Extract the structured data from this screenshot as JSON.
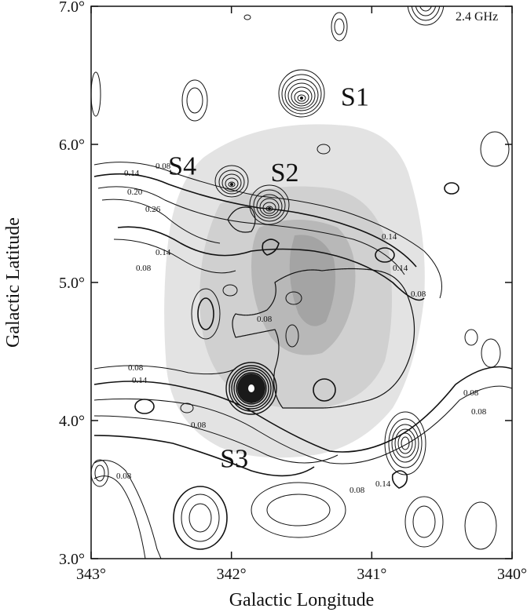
{
  "chart_data": {
    "type": "contour",
    "frequency_label": "2.4 GHz",
    "xlabel": "Galactic Longitude",
    "ylabel": "Galactic Latitude",
    "xlim": [
      343,
      340
    ],
    "ylim": [
      3.0,
      7.0
    ],
    "x_ticks": [
      343,
      342,
      341,
      340
    ],
    "x_tick_labels": [
      "343°",
      "342°",
      "341°",
      "340°"
    ],
    "y_ticks": [
      3.0,
      4.0,
      5.0,
      6.0,
      7.0
    ],
    "y_tick_labels": [
      "3.0°",
      "4.0°",
      "5.0°",
      "6.0°",
      "7.0°"
    ],
    "contour_levels": [
      "0.08",
      "0.14",
      "0.20",
      "0.26"
    ],
    "sources": [
      {
        "name": "S1",
        "l": 341.5,
        "b": 6.32,
        "label_l": 341.12,
        "label_b": 6.35
      },
      {
        "name": "S2",
        "l": 341.75,
        "b": 5.5,
        "label_l": 341.62,
        "label_b": 5.8
      },
      {
        "name": "S3",
        "l": 341.82,
        "b": 4.2,
        "label_l": 341.98,
        "label_b": 3.73
      },
      {
        "name": "S4",
        "l": 341.95,
        "b": 5.68,
        "label_l": 342.35,
        "label_b": 5.85
      }
    ],
    "sources_extra": [
      {
        "name": "",
        "l": 340.72,
        "b": 3.8
      },
      {
        "name": "",
        "l": 340.62,
        "b": 6.98
      }
    ]
  }
}
